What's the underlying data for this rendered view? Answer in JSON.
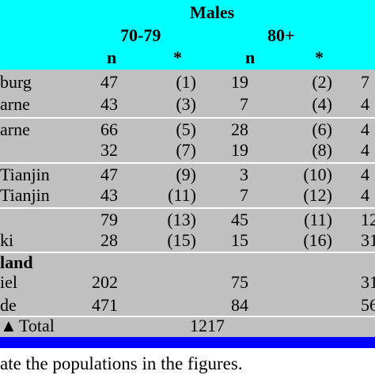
{
  "header": {
    "group": "Males",
    "age_groups": [
      "70-79",
      "80+"
    ],
    "col_n": "n",
    "col_star": "*"
  },
  "rows": [
    {
      "label": "burg",
      "n1": "47",
      "s1": "(1)",
      "n2": "19",
      "s2": "(2)",
      "extra": "7"
    },
    {
      "label": "arne",
      "n1": "43",
      "s1": "(3)",
      "n2": "7",
      "s2": "(4)",
      "extra": "4"
    },
    {
      "label": "arne",
      "n1": "66",
      "s1": "(5)",
      "n2": "28",
      "s2": "(6)",
      "extra": "4"
    },
    {
      "label": "",
      "n1": "32",
      "s1": "(7)",
      "n2": "19",
      "s2": "(8)",
      "extra": "4"
    },
    {
      "label": "Tianjin",
      "n1": "47",
      "s1": "(9)",
      "n2": "3",
      "s2": "(10)",
      "extra": "4"
    },
    {
      "label": " Tianjin",
      "n1": "43",
      "s1": "(11)",
      "n2": "7",
      "s2": "(12)",
      "extra": "4"
    },
    {
      "label": "",
      "n1": "79",
      "s1": "(13)",
      "n2": "45",
      "s2": "(11)",
      "extra": "12"
    },
    {
      "label": "ki",
      "n1": "28",
      "s1": "(15)",
      "n2": "15",
      "s2": "(16)",
      "extra": "31"
    }
  ],
  "section": {
    "label": "land"
  },
  "section_rows": [
    {
      "label": "iel",
      "n1": "202",
      "n2": "75",
      "extra": "31"
    },
    {
      "label": "de",
      "n1": "471",
      "n2": "84",
      "extra": "56"
    }
  ],
  "total": {
    "label": "Total",
    "value": "1217"
  },
  "caption": "ate the populations in the figures."
}
